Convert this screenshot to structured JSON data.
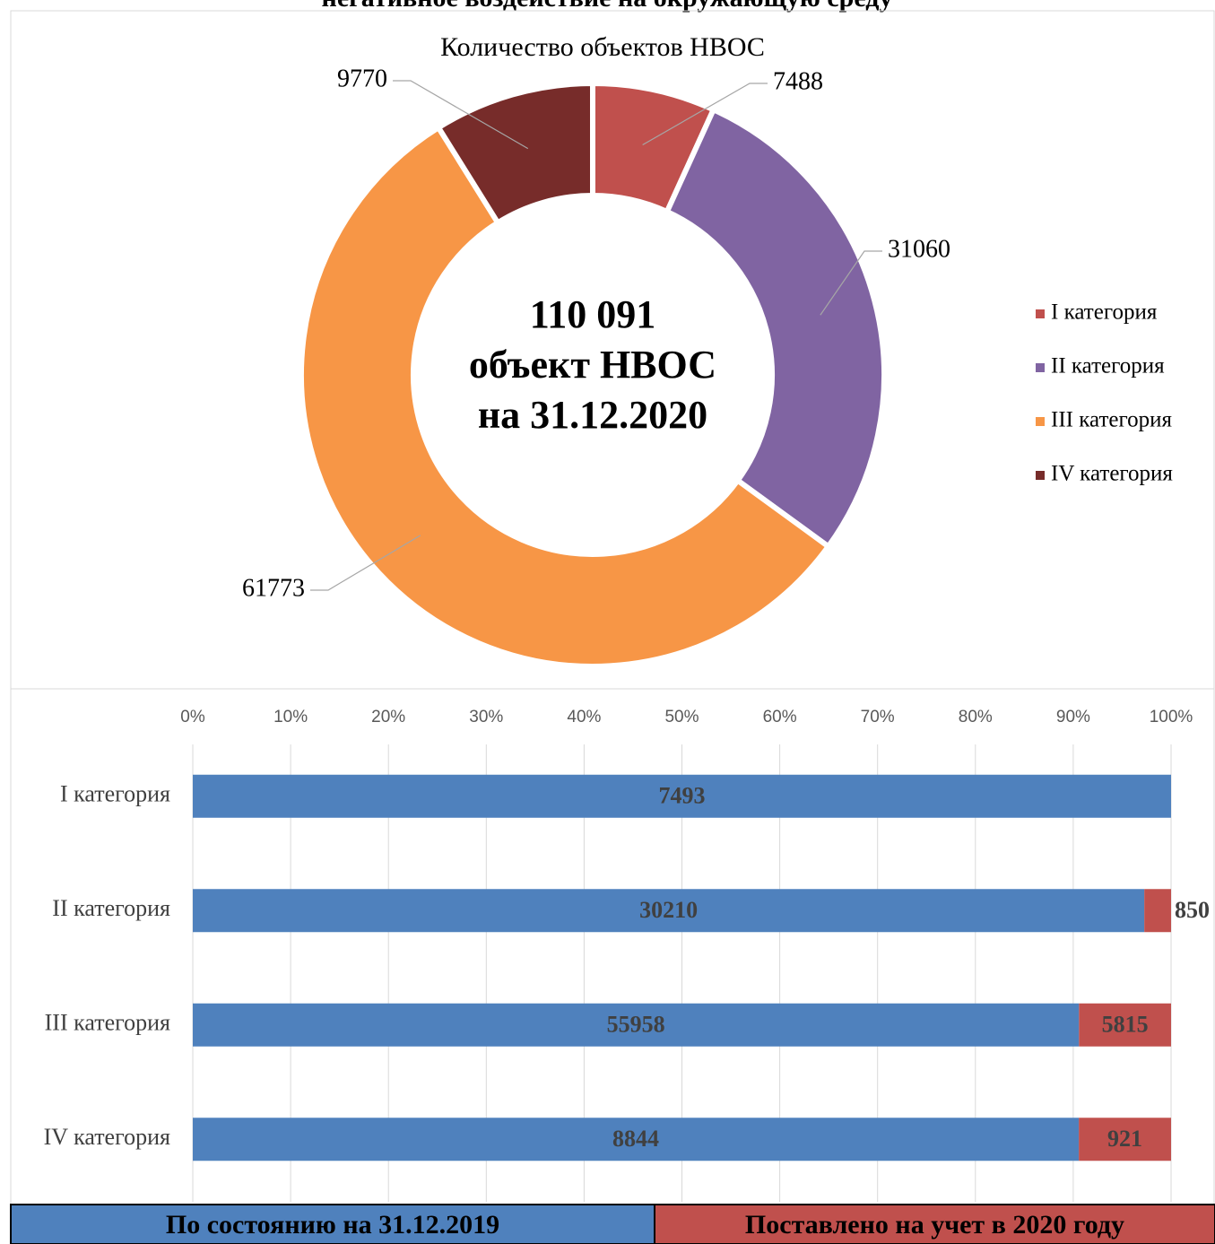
{
  "header": {
    "title": "негативное воздействие на окружающую среду"
  },
  "chart_data": [
    {
      "type": "pie",
      "title": "Количество объектов НВОС",
      "center_text": [
        "110 091",
        "объект НВОС",
        "на 31.12.2020"
      ],
      "categories": [
        "I категория",
        "II категория",
        "III категория",
        "IV категория"
      ],
      "values": [
        7488,
        31060,
        61773,
        9770
      ],
      "colors": [
        "#c0504d",
        "#8064a2",
        "#f79646",
        "#772c2a"
      ],
      "legend": "right"
    },
    {
      "type": "bar",
      "orientation": "horizontal",
      "stacking": "percent",
      "categories": [
        "I категория",
        "II категория",
        "III категория",
        "IV категория"
      ],
      "series": [
        {
          "name": "По состоянию на 31.12.2019",
          "color": "#4f81bd",
          "values": [
            7493,
            30210,
            55958,
            8844
          ]
        },
        {
          "name": "Поставлено на учет в 2020 году",
          "color": "#c0504d",
          "values": [
            null,
            850,
            5815,
            921
          ]
        }
      ],
      "xlim": [
        0,
        100
      ],
      "xticks": [
        {
          "value": 0,
          "label": "0%"
        },
        {
          "value": 10,
          "label": "10%"
        },
        {
          "value": 20,
          "label": "20%"
        },
        {
          "value": 30,
          "label": "30%"
        },
        {
          "value": 40,
          "label": "40%"
        },
        {
          "value": 50,
          "label": "50%"
        },
        {
          "value": 60,
          "label": "60%"
        },
        {
          "value": 70,
          "label": "70%"
        },
        {
          "value": 80,
          "label": "80%"
        },
        {
          "value": 90,
          "label": "90%"
        },
        {
          "value": 100,
          "label": "100%"
        }
      ],
      "grid": true,
      "legend": "bottom"
    }
  ]
}
